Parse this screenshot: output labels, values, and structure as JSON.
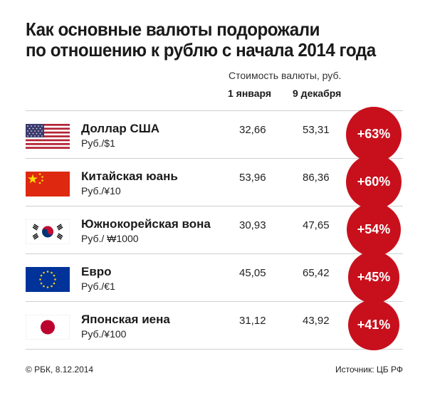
{
  "title_line1": "Как основные валюты подорожали",
  "title_line2": "по отношению к рублю с начала 2014 года",
  "subhead": "Стоимость валюты, руб.",
  "col1": "1 января",
  "col2": "9 декабря",
  "footer_left": "© РБК, 8.12.2014",
  "footer_right": "Источник: ЦБ РФ",
  "accent_color": "#c8101d",
  "rows": [
    {
      "name": "Доллар США",
      "unit": "Руб./$1",
      "jan1": "32,66",
      "dec9": "53,31",
      "change": "+63%",
      "flag": "us-flag"
    },
    {
      "name": "Китайская юань",
      "unit": "Руб./¥10",
      "jan1": "53,96",
      "dec9": "86,36",
      "change": "+60%",
      "flag": "china-flag"
    },
    {
      "name": "Южнокорейская вона",
      "unit": "Руб./ ₩1000",
      "jan1": "30,93",
      "dec9": "47,65",
      "change": "+54%",
      "flag": "south-korea-flag"
    },
    {
      "name": "Евро",
      "unit": "Руб./€1",
      "jan1": "45,05",
      "dec9": "65,42",
      "change": "+45%",
      "flag": "eu-flag"
    },
    {
      "name": "Японская иена",
      "unit": "Руб./¥100",
      "jan1": "31,12",
      "dec9": "43,92",
      "change": "+41%",
      "flag": "japan-flag"
    }
  ],
  "chart_data": {
    "type": "table",
    "title": "Как основные валюты подорожали по отношению к рублю с начала 2014 года",
    "subtitle": "Стоимость валюты, руб.",
    "columns": [
      "1 января",
      "9 декабря"
    ],
    "categories": [
      "Доллар США",
      "Китайская юань",
      "Южнокорейская вона",
      "Евро",
      "Японская иена"
    ],
    "series": [
      {
        "name": "1 января",
        "values": [
          32.66,
          53.96,
          30.93,
          45.05,
          31.12
        ]
      },
      {
        "name": "9 декабря",
        "values": [
          53.31,
          86.36,
          47.65,
          65.42,
          43.92
        ]
      }
    ],
    "change_percent": [
      63,
      60,
      54,
      45,
      41
    ]
  }
}
